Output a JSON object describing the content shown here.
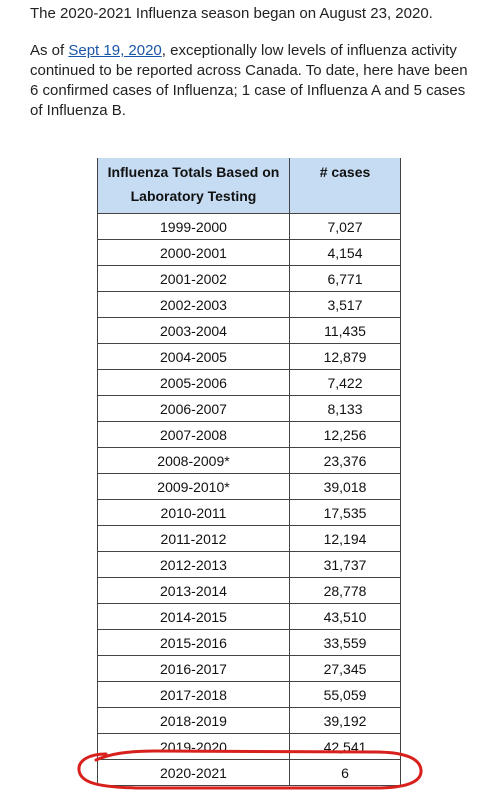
{
  "intro": {
    "line1": "The 2020-2021 Influenza season began on August 23, 2020.",
    "p2_prefix": "As of ",
    "p2_link": "Sept 19, 2020",
    "p2_rest": ", exceptionally low levels of influenza activity continued to be reported across Canada. To date, here have been 6 confirmed cases of Influenza; 1 case of Influenza A and 5 cases of Influenza B."
  },
  "table": {
    "header_season": "Influenza Totals Based on Laboratory Testing",
    "header_cases": "# cases",
    "rows": [
      {
        "season": "1999-2000",
        "cases": "7,027"
      },
      {
        "season": "2000-2001",
        "cases": "4,154"
      },
      {
        "season": "2001-2002",
        "cases": "6,771"
      },
      {
        "season": "2002-2003",
        "cases": "3,517"
      },
      {
        "season": "2003-2004",
        "cases": "11,435"
      },
      {
        "season": "2004-2005",
        "cases": "12,879"
      },
      {
        "season": "2005-2006",
        "cases": "7,422"
      },
      {
        "season": "2006-2007",
        "cases": "8,133"
      },
      {
        "season": "2007-2008",
        "cases": "12,256"
      },
      {
        "season": "2008-2009*",
        "cases": "23,376"
      },
      {
        "season": "2009-2010*",
        "cases": "39,018"
      },
      {
        "season": "2010-2011",
        "cases": "17,535"
      },
      {
        "season": "2011-2012",
        "cases": "12,194"
      },
      {
        "season": "2012-2013",
        "cases": "31,737"
      },
      {
        "season": "2013-2014",
        "cases": "28,778"
      },
      {
        "season": "2014-2015",
        "cases": "43,510"
      },
      {
        "season": "2015-2016",
        "cases": "33,559"
      },
      {
        "season": "2016-2017",
        "cases": "27,345"
      },
      {
        "season": "2017-2018",
        "cases": "55,059"
      },
      {
        "season": "2018-2019",
        "cases": "39,192"
      },
      {
        "season": "2019-2020",
        "cases": "42,541"
      },
      {
        "season": "2020-2021",
        "cases": "6"
      }
    ]
  },
  "colors": {
    "header_bg": "#c6dcf3",
    "link": "#1a56a8",
    "annotation_circle": "#d8201c"
  }
}
